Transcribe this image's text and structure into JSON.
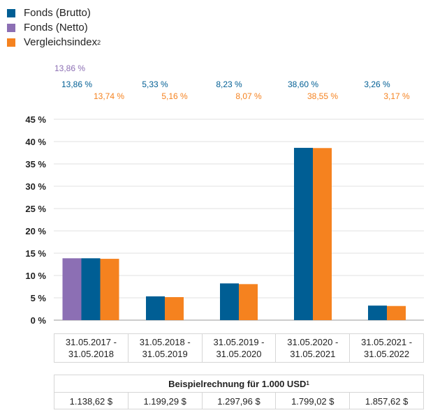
{
  "legend": {
    "items": [
      {
        "label": "Fonds (Brutto)",
        "color": "#005e94"
      },
      {
        "label": "Fonds (Netto)",
        "color": "#8c6fb4"
      },
      {
        "label": "Vergleichsindex",
        "sup": "2",
        "color": "#f5821f"
      }
    ]
  },
  "chart_data": {
    "type": "bar",
    "title": "",
    "xlabel": "",
    "ylabel": "",
    "ylim": [
      0,
      45
    ],
    "y_ticks": [
      "0 %",
      "5 %",
      "10 %",
      "15 %",
      "20 %",
      "25 %",
      "30 %",
      "35 %",
      "40 %",
      "45 %"
    ],
    "grid": true,
    "categories": [
      [
        "31.05.2017 -",
        "31.05.2018"
      ],
      [
        "31.05.2018 -",
        "31.05.2019"
      ],
      [
        "31.05.2019 -",
        "31.05.2020"
      ],
      [
        "31.05.2020 -",
        "31.05.2021"
      ],
      [
        "31.05.2021 -",
        "31.05.2022"
      ]
    ],
    "series": [
      {
        "name": "Fonds (Netto)",
        "color": "#8c6fb4",
        "values": [
          13.86,
          null,
          null,
          null,
          null
        ],
        "labels": [
          "13,86 %",
          "",
          "",
          "",
          ""
        ]
      },
      {
        "name": "Fonds (Brutto)",
        "color": "#005e94",
        "values": [
          13.86,
          5.33,
          8.23,
          38.6,
          3.26
        ],
        "labels": [
          "13,86 %",
          "5,33 %",
          "8,23 %",
          "38,60 %",
          "3,26 %"
        ]
      },
      {
        "name": "Vergleichsindex",
        "color": "#f5821f",
        "values": [
          13.74,
          5.16,
          8.07,
          38.55,
          3.17
        ],
        "labels": [
          "13,74 %",
          "5,16 %",
          "8,07 %",
          "38,55 %",
          "3,17 %"
        ]
      }
    ]
  },
  "example": {
    "title": "Beispielrechnung für 1.000 USD",
    "title_sup": "1",
    "values": [
      "1.138,62 $",
      "1.199,29 $",
      "1.297,96 $",
      "1.799,02 $",
      "1.857,62 $"
    ]
  }
}
